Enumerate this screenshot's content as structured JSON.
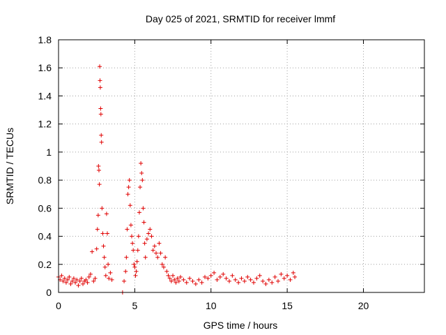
{
  "chart_data": {
    "type": "scatter",
    "title": "Day 025 of 2021, SRMTID for receiver lmmf",
    "xlabel": "GPS time / hours",
    "ylabel": "SRMTID / TECUs",
    "xlim": [
      0,
      24
    ],
    "ylim": [
      0,
      1.8
    ],
    "x_ticks": [
      0,
      5,
      10,
      15,
      20
    ],
    "x_tick_labels": [
      "0",
      "5",
      "10",
      "15",
      "20"
    ],
    "y_ticks": [
      0,
      0.2,
      0.4,
      0.6,
      0.8,
      1.0,
      1.2,
      1.4,
      1.6,
      1.8
    ],
    "y_tick_labels": [
      "0",
      "0.2",
      "0.4",
      "0.6",
      "0.8",
      "1",
      "1.2",
      "1.4",
      "1.6",
      "1.8"
    ],
    "grid": true,
    "marker": "+",
    "color": "#e00000",
    "series": [
      {
        "name": "SRMTID",
        "points": [
          [
            0.0,
            0.11
          ],
          [
            0.1,
            0.09
          ],
          [
            0.2,
            0.12
          ],
          [
            0.3,
            0.08
          ],
          [
            0.4,
            0.1
          ],
          [
            0.5,
            0.07
          ],
          [
            0.6,
            0.09
          ],
          [
            0.7,
            0.11
          ],
          [
            0.8,
            0.06
          ],
          [
            0.9,
            0.08
          ],
          [
            1.0,
            0.1
          ],
          [
            1.1,
            0.07
          ],
          [
            1.2,
            0.09
          ],
          [
            1.3,
            0.05
          ],
          [
            1.4,
            0.08
          ],
          [
            1.5,
            0.1
          ],
          [
            1.6,
            0.06
          ],
          [
            1.7,
            0.08
          ],
          [
            1.8,
            0.09
          ],
          [
            1.9,
            0.07
          ],
          [
            2.0,
            0.11
          ],
          [
            2.1,
            0.13
          ],
          [
            2.2,
            0.29
          ],
          [
            2.3,
            0.08
          ],
          [
            2.4,
            0.1
          ],
          [
            2.5,
            0.31
          ],
          [
            2.55,
            0.45
          ],
          [
            2.6,
            0.55
          ],
          [
            2.62,
            0.9
          ],
          [
            2.65,
            0.87
          ],
          [
            2.68,
            0.77
          ],
          [
            2.7,
            1.61
          ],
          [
            2.72,
            1.51
          ],
          [
            2.74,
            1.46
          ],
          [
            2.76,
            1.31
          ],
          [
            2.78,
            1.27
          ],
          [
            2.8,
            1.12
          ],
          [
            2.82,
            1.07
          ],
          [
            2.85,
            0.6
          ],
          [
            2.9,
            0.42
          ],
          [
            2.95,
            0.33
          ],
          [
            3.0,
            0.25
          ],
          [
            3.05,
            0.18
          ],
          [
            3.1,
            0.12
          ],
          [
            3.15,
            0.56
          ],
          [
            3.2,
            0.42
          ],
          [
            3.25,
            0.2
          ],
          [
            3.3,
            0.1
          ],
          [
            3.4,
            0.14
          ],
          [
            3.5,
            0.09
          ],
          [
            4.2,
            0.0
          ],
          [
            4.3,
            0.08
          ],
          [
            4.4,
            0.15
          ],
          [
            4.45,
            0.25
          ],
          [
            4.5,
            0.45
          ],
          [
            4.55,
            0.7
          ],
          [
            4.6,
            0.75
          ],
          [
            4.65,
            0.8
          ],
          [
            4.7,
            0.62
          ],
          [
            4.75,
            0.48
          ],
          [
            4.8,
            0.4
          ],
          [
            4.85,
            0.35
          ],
          [
            4.9,
            0.3
          ],
          [
            4.95,
            0.2
          ],
          [
            5.0,
            0.18
          ],
          [
            5.05,
            0.12
          ],
          [
            5.1,
            0.15
          ],
          [
            5.15,
            0.22
          ],
          [
            5.2,
            0.3
          ],
          [
            5.25,
            0.4
          ],
          [
            5.3,
            0.57
          ],
          [
            5.35,
            0.75
          ],
          [
            5.4,
            0.92
          ],
          [
            5.45,
            0.85
          ],
          [
            5.5,
            0.8
          ],
          [
            5.55,
            0.6
          ],
          [
            5.6,
            0.5
          ],
          [
            5.65,
            0.35
          ],
          [
            5.7,
            0.25
          ],
          [
            5.8,
            0.38
          ],
          [
            5.9,
            0.42
          ],
          [
            6.0,
            0.45
          ],
          [
            6.1,
            0.4
          ],
          [
            6.2,
            0.3
          ],
          [
            6.3,
            0.33
          ],
          [
            6.4,
            0.28
          ],
          [
            6.5,
            0.25
          ],
          [
            6.6,
            0.35
          ],
          [
            6.7,
            0.28
          ],
          [
            6.8,
            0.2
          ],
          [
            6.9,
            0.18
          ],
          [
            7.0,
            0.25
          ],
          [
            7.1,
            0.15
          ],
          [
            7.2,
            0.12
          ],
          [
            7.3,
            0.1
          ],
          [
            7.4,
            0.08
          ],
          [
            7.5,
            0.12
          ],
          [
            7.6,
            0.09
          ],
          [
            7.7,
            0.07
          ],
          [
            7.8,
            0.1
          ],
          [
            7.9,
            0.08
          ],
          [
            8.0,
            0.11
          ],
          [
            8.2,
            0.09
          ],
          [
            8.4,
            0.07
          ],
          [
            8.6,
            0.1
          ],
          [
            8.8,
            0.08
          ],
          [
            9.0,
            0.06
          ],
          [
            9.2,
            0.09
          ],
          [
            9.4,
            0.07
          ],
          [
            9.6,
            0.11
          ],
          [
            9.8,
            0.1
          ],
          [
            10.0,
            0.12
          ],
          [
            10.2,
            0.14
          ],
          [
            10.4,
            0.09
          ],
          [
            10.6,
            0.11
          ],
          [
            10.8,
            0.13
          ],
          [
            11.0,
            0.1
          ],
          [
            11.2,
            0.08
          ],
          [
            11.4,
            0.12
          ],
          [
            11.6,
            0.09
          ],
          [
            11.8,
            0.07
          ],
          [
            12.0,
            0.1
          ],
          [
            12.2,
            0.08
          ],
          [
            12.4,
            0.11
          ],
          [
            12.6,
            0.09
          ],
          [
            12.8,
            0.07
          ],
          [
            13.0,
            0.1
          ],
          [
            13.2,
            0.12
          ],
          [
            13.4,
            0.08
          ],
          [
            13.6,
            0.06
          ],
          [
            13.8,
            0.09
          ],
          [
            14.0,
            0.07
          ],
          [
            14.2,
            0.11
          ],
          [
            14.4,
            0.08
          ],
          [
            14.6,
            0.13
          ],
          [
            14.8,
            0.1
          ],
          [
            15.0,
            0.12
          ],
          [
            15.2,
            0.09
          ],
          [
            15.4,
            0.14
          ],
          [
            15.5,
            0.11
          ]
        ]
      }
    ]
  }
}
